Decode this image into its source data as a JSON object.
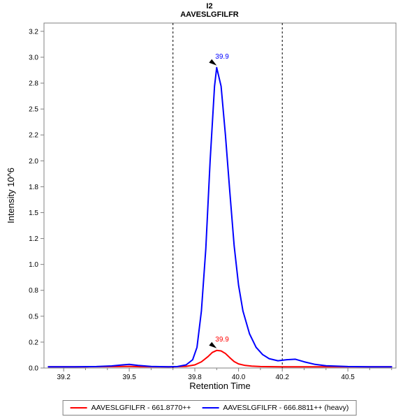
{
  "chart_data": {
    "type": "line",
    "title": "I2",
    "subtitle": "AAVESLGFILFR",
    "xlabel": "Retention Time",
    "ylabel": "Intensity 10^6",
    "xlim": [
      39.11,
      40.72
    ],
    "ylim": [
      0,
      3.33
    ],
    "grid": false,
    "x_ticks": [
      {
        "label": "39.2",
        "value": 39.2
      },
      {
        "label": "39.5",
        "value": 39.5
      },
      {
        "label": "39.8",
        "value": 39.8
      },
      {
        "label": "40.0",
        "value": 40.0
      },
      {
        "label": "40.2",
        "value": 40.2
      },
      {
        "label": "40.5",
        "value": 40.5
      }
    ],
    "x_minor_tick_step": 0.1,
    "y_ticks": [
      {
        "label": "0.0",
        "value": 0.0
      },
      {
        "label": "0.2",
        "value": 0.25
      },
      {
        "label": "0.5",
        "value": 0.5
      },
      {
        "label": "0.8",
        "value": 0.75
      },
      {
        "label": "1.0",
        "value": 1.0
      },
      {
        "label": "1.2",
        "value": 1.25
      },
      {
        "label": "1.5",
        "value": 1.5
      },
      {
        "label": "1.8",
        "value": 1.75
      },
      {
        "label": "2.0",
        "value": 2.0
      },
      {
        "label": "2.2",
        "value": 2.25
      },
      {
        "label": "2.5",
        "value": 2.5
      },
      {
        "label": "2.8",
        "value": 2.75
      },
      {
        "label": "3.0",
        "value": 3.0
      },
      {
        "label": "3.2",
        "value": 3.25
      }
    ],
    "integration_boundaries": [
      39.7,
      40.2
    ],
    "boundary_style": {
      "color": "#000000",
      "dash": "3,3"
    },
    "series": [
      {
        "id": "light",
        "name": "AAVESLGFILFR - 661.8770++",
        "color": "#ff0000",
        "peak": {
          "label": "39.9",
          "x": 39.9,
          "y": 0.17
        },
        "points": [
          [
            39.13,
            0.012
          ],
          [
            39.3,
            0.012
          ],
          [
            39.45,
            0.014
          ],
          [
            39.5,
            0.016
          ],
          [
            39.55,
            0.013
          ],
          [
            39.65,
            0.012
          ],
          [
            39.7,
            0.012
          ],
          [
            39.76,
            0.016
          ],
          [
            39.8,
            0.03
          ],
          [
            39.83,
            0.06
          ],
          [
            39.86,
            0.11
          ],
          [
            39.88,
            0.15
          ],
          [
            39.9,
            0.17
          ],
          [
            39.92,
            0.165
          ],
          [
            39.94,
            0.14
          ],
          [
            39.96,
            0.1
          ],
          [
            39.98,
            0.062
          ],
          [
            40.0,
            0.04
          ],
          [
            40.03,
            0.025
          ],
          [
            40.06,
            0.018
          ],
          [
            40.1,
            0.014
          ],
          [
            40.2,
            0.012
          ],
          [
            40.35,
            0.012
          ],
          [
            40.5,
            0.012
          ],
          [
            40.7,
            0.012
          ]
        ]
      },
      {
        "id": "heavy",
        "name": "AAVESLGFILFR - 666.8811++ (heavy)",
        "color": "#0000ff",
        "peak": {
          "label": "39.9",
          "x": 39.9,
          "y": 2.9
        },
        "points": [
          [
            39.13,
            0.012
          ],
          [
            39.25,
            0.012
          ],
          [
            39.35,
            0.014
          ],
          [
            39.42,
            0.02
          ],
          [
            39.47,
            0.03
          ],
          [
            39.5,
            0.035
          ],
          [
            39.54,
            0.025
          ],
          [
            39.6,
            0.015
          ],
          [
            39.68,
            0.012
          ],
          [
            39.72,
            0.014
          ],
          [
            39.76,
            0.03
          ],
          [
            39.79,
            0.08
          ],
          [
            39.81,
            0.2
          ],
          [
            39.83,
            0.55
          ],
          [
            39.85,
            1.15
          ],
          [
            39.87,
            2.0
          ],
          [
            39.89,
            2.72
          ],
          [
            39.9,
            2.9
          ],
          [
            39.92,
            2.72
          ],
          [
            39.94,
            2.25
          ],
          [
            39.96,
            1.7
          ],
          [
            39.98,
            1.18
          ],
          [
            40.0,
            0.8
          ],
          [
            40.02,
            0.55
          ],
          [
            40.05,
            0.33
          ],
          [
            40.08,
            0.2
          ],
          [
            40.11,
            0.13
          ],
          [
            40.14,
            0.09
          ],
          [
            40.18,
            0.07
          ],
          [
            40.22,
            0.08
          ],
          [
            40.26,
            0.085
          ],
          [
            40.3,
            0.06
          ],
          [
            40.35,
            0.035
          ],
          [
            40.4,
            0.022
          ],
          [
            40.5,
            0.014
          ],
          [
            40.6,
            0.012
          ],
          [
            40.7,
            0.012
          ]
        ]
      }
    ],
    "frame_color": "#808080",
    "tick_label_color": "#000000",
    "annotation_arrow_color": "#000000"
  },
  "legend": {
    "items": [
      {
        "label": "AAVESLGFILFR - 661.8770++",
        "color": "#ff0000"
      },
      {
        "label": "AAVESLGFILFR - 666.8811++ (heavy)",
        "color": "#0000ff"
      }
    ]
  }
}
